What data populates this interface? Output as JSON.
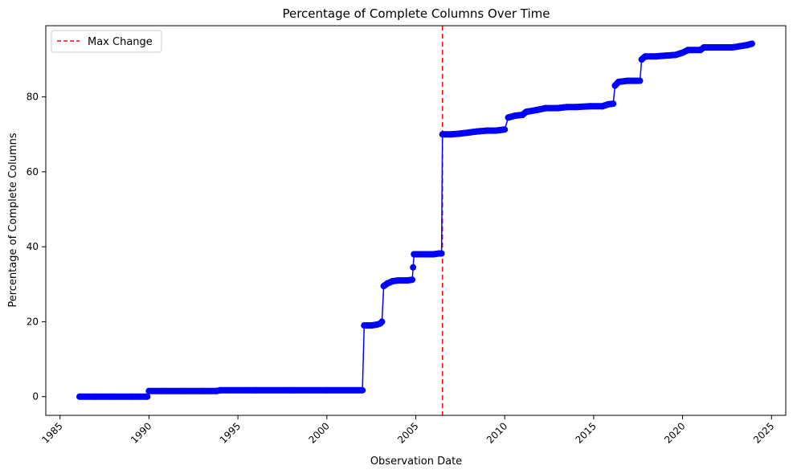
{
  "chart_data": {
    "type": "line",
    "title": "Percentage of Complete Columns Over Time",
    "xlabel": "Observation Date",
    "ylabel": "Percentage of Complete Columns",
    "xlim": [
      1984.2,
      2025.8
    ],
    "ylim": [
      -5,
      99
    ],
    "x_ticks": [
      1985,
      1990,
      1995,
      2000,
      2005,
      2010,
      2015,
      2020,
      2025
    ],
    "y_ticks": [
      0,
      20,
      40,
      60,
      80
    ],
    "grid": false,
    "legend_position": "top-left",
    "series": [
      {
        "color": "#0000ff",
        "marker": "circle",
        "points": [
          [
            1986.1,
            0
          ],
          [
            1987.0,
            0
          ],
          [
            1988.0,
            0
          ],
          [
            1989.0,
            0
          ],
          [
            1989.9,
            0
          ],
          [
            1990.0,
            1.5
          ],
          [
            1991.0,
            1.5
          ],
          [
            1992.0,
            1.5
          ],
          [
            1993.0,
            1.5
          ],
          [
            1993.8,
            1.5
          ],
          [
            1994.0,
            1.7
          ],
          [
            1996.0,
            1.7
          ],
          [
            1998.0,
            1.7
          ],
          [
            2000.0,
            1.7
          ],
          [
            2002.0,
            1.7
          ],
          [
            2002.1,
            19.0
          ],
          [
            2002.5,
            19.0
          ],
          [
            2002.8,
            19.2
          ],
          [
            2003.0,
            19.5
          ],
          [
            2003.1,
            20.0
          ],
          [
            2003.2,
            29.5
          ],
          [
            2003.4,
            30.2
          ],
          [
            2003.7,
            30.8
          ],
          [
            2004.0,
            31.0
          ],
          [
            2004.5,
            31.0
          ],
          [
            2004.8,
            31.2
          ],
          [
            2004.85,
            34.5
          ],
          [
            2004.9,
            38.0
          ],
          [
            2005.5,
            38.0
          ],
          [
            2006.0,
            38.0
          ],
          [
            2006.3,
            38.2
          ],
          [
            2006.45,
            38.2
          ],
          [
            2006.5,
            70.0
          ],
          [
            2007.0,
            70.0
          ],
          [
            2007.5,
            70.2
          ],
          [
            2008.0,
            70.5
          ],
          [
            2008.5,
            70.8
          ],
          [
            2009.0,
            71.0
          ],
          [
            2009.5,
            71.0
          ],
          [
            2010.0,
            71.3
          ],
          [
            2010.2,
            74.5
          ],
          [
            2010.6,
            75.0
          ],
          [
            2011.0,
            75.2
          ],
          [
            2011.2,
            76.0
          ],
          [
            2011.8,
            76.5
          ],
          [
            2012.3,
            77.0
          ],
          [
            2013.0,
            77.0
          ],
          [
            2013.5,
            77.3
          ],
          [
            2014.0,
            77.3
          ],
          [
            2014.8,
            77.5
          ],
          [
            2015.5,
            77.5
          ],
          [
            2015.8,
            78.0
          ],
          [
            2016.1,
            78.2
          ],
          [
            2016.2,
            83.0
          ],
          [
            2016.4,
            84.0
          ],
          [
            2016.9,
            84.3
          ],
          [
            2017.3,
            84.3
          ],
          [
            2017.6,
            84.3
          ],
          [
            2017.7,
            90.0
          ],
          [
            2017.9,
            90.8
          ],
          [
            2018.5,
            90.8
          ],
          [
            2019.0,
            91.0
          ],
          [
            2019.6,
            91.2
          ],
          [
            2020.0,
            91.8
          ],
          [
            2020.3,
            92.5
          ],
          [
            2021.0,
            92.5
          ],
          [
            2021.2,
            93.2
          ],
          [
            2022.0,
            93.2
          ],
          [
            2022.8,
            93.2
          ],
          [
            2023.2,
            93.5
          ],
          [
            2023.6,
            93.8
          ],
          [
            2023.9,
            94.2
          ]
        ]
      }
    ],
    "reference_lines": [
      {
        "label": "Max Change",
        "x": 2006.5,
        "color": "#ff0000",
        "style": "dashed"
      }
    ]
  }
}
